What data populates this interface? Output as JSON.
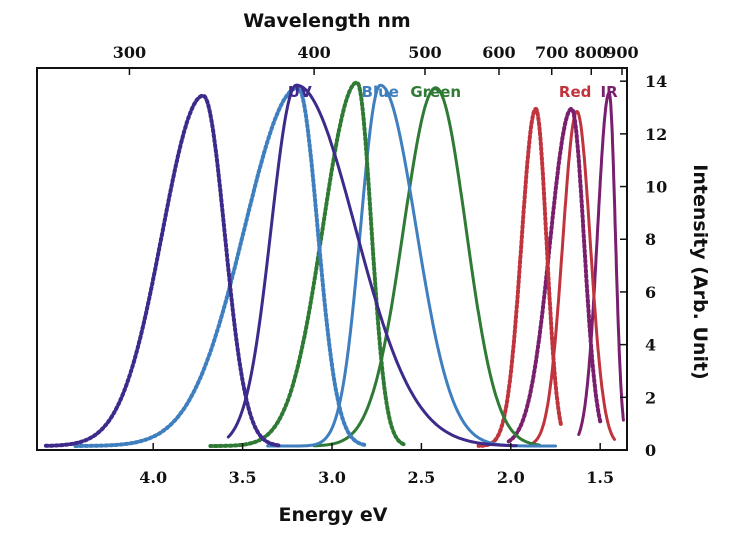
{
  "chart_data": {
    "type": "line",
    "xlabel_bottom": "Energy eV",
    "xlabel_top": "Wavelength nm",
    "ylabel": "Intensity (Arb. Unit)",
    "xlim": [
      1.35,
      4.65
    ],
    "ylim": [
      0,
      14.5
    ],
    "x_reversed": true,
    "x_ticks": [
      {
        "value": 1.5,
        "label": "1.5"
      },
      {
        "value": 2.0,
        "label": "2.0"
      },
      {
        "value": 2.5,
        "label": "2.5"
      },
      {
        "value": 3.0,
        "label": "3.0"
      },
      {
        "value": 3.5,
        "label": "3.5"
      },
      {
        "value": 4.0,
        "label": "4.0"
      }
    ],
    "y_ticks": [
      {
        "value": 0,
        "label": "0"
      },
      {
        "value": 2,
        "label": "2"
      },
      {
        "value": 4,
        "label": "4"
      },
      {
        "value": 6,
        "label": "6"
      },
      {
        "value": 8,
        "label": "8"
      },
      {
        "value": 10,
        "label": "10"
      },
      {
        "value": 12,
        "label": "12"
      },
      {
        "value": 14,
        "label": "14"
      }
    ],
    "top_ticks": [
      {
        "value": 1.378,
        "label": "900"
      },
      {
        "value": 1.55,
        "label": "800"
      },
      {
        "value": 1.771,
        "label": "700"
      },
      {
        "value": 2.066,
        "label": "600"
      },
      {
        "value": 2.48,
        "label": "500"
      },
      {
        "value": 3.1,
        "label": "400"
      },
      {
        "value": 4.133,
        "label": "300"
      }
    ],
    "legend": [
      {
        "label": "IR",
        "color": "#7a1f6e"
      },
      {
        "label": "Red",
        "color": "#c0343e"
      },
      {
        "label": "Green",
        "color": "#2f7a35"
      },
      {
        "label": "Blue",
        "color": "#3f7fbf"
      },
      {
        "label": "UV",
        "color": "#3d2a8a"
      }
    ],
    "series": [
      {
        "color": "#7a1f6e",
        "style": "solid",
        "peak_x": 1.45,
        "peak_y": 13.4,
        "w_left": 0.035,
        "w_right": 0.065,
        "range": [
          1.37,
          1.62
        ]
      },
      {
        "color": "#c0343e",
        "style": "solid",
        "peak_x": 1.63,
        "peak_y": 12.7,
        "w_left": 0.075,
        "w_right": 0.08,
        "range": [
          1.42,
          1.88
        ]
      },
      {
        "color": "#7a1f6e",
        "style": "dashed",
        "peak_x": 1.66,
        "peak_y": 12.8,
        "w_left": 0.07,
        "w_right": 0.12,
        "range": [
          1.5,
          2.02
        ]
      },
      {
        "color": "#c0343e",
        "style": "dashed",
        "peak_x": 1.86,
        "peak_y": 12.8,
        "w_left": 0.06,
        "w_right": 0.08,
        "range": [
          1.72,
          2.18
        ]
      },
      {
        "color": "#2f7a35",
        "style": "solid",
        "peak_x": 2.42,
        "peak_y": 13.6,
        "w_left": 0.17,
        "w_right": 0.18,
        "range": [
          1.84,
          3.1
        ]
      },
      {
        "color": "#3f7fbf",
        "style": "solid",
        "peak_x": 2.73,
        "peak_y": 13.7,
        "w_left": 0.2,
        "w_right": 0.11,
        "range": [
          1.75,
          3.36
        ]
      },
      {
        "color": "#2f7a35",
        "style": "dashed",
        "peak_x": 2.86,
        "peak_y": 13.8,
        "w_left": 0.08,
        "w_right": 0.19,
        "range": [
          2.6,
          3.68
        ]
      },
      {
        "color": "#3f7fbf",
        "style": "dashed",
        "peak_x": 3.19,
        "peak_y": 13.6,
        "w_left": 0.11,
        "w_right": 0.3,
        "range": [
          2.82,
          4.45
        ]
      },
      {
        "color": "#3d2a8a",
        "style": "solid",
        "peak_x": 3.2,
        "peak_y": 13.7,
        "w_left": 0.33,
        "w_right": 0.14,
        "range": [
          1.97,
          3.58
        ]
      },
      {
        "color": "#3d2a8a",
        "style": "dashed",
        "peak_x": 3.72,
        "peak_y": 13.3,
        "w_left": 0.12,
        "w_right": 0.23,
        "range": [
          3.3,
          4.6
        ]
      }
    ]
  }
}
